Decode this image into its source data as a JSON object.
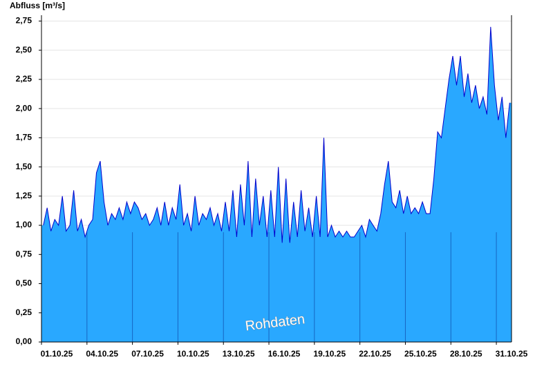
{
  "chart_data": {
    "type": "area",
    "title": "Abfluss [m³/s]",
    "annotation": "Rohdaten",
    "xlim": [
      0,
      31
    ],
    "xticks": [
      {
        "value": 0,
        "label": "01.10.25"
      },
      {
        "value": 3,
        "label": "04.10.25"
      },
      {
        "value": 6,
        "label": "07.10.25"
      },
      {
        "value": 9,
        "label": "10.10.25"
      },
      {
        "value": 12,
        "label": "13.10.25"
      },
      {
        "value": 15,
        "label": "16.10.25"
      },
      {
        "value": 18,
        "label": "19.10.25"
      },
      {
        "value": 21,
        "label": "22.10.25"
      },
      {
        "value": 24,
        "label": "25.10.25"
      },
      {
        "value": 27,
        "label": "28.10.25"
      },
      {
        "value": 30,
        "label": "31.10.25"
      }
    ],
    "ylim": [
      0,
      2.8
    ],
    "yticks": [
      {
        "value": 0,
        "label": "0,00"
      },
      {
        "value": 0.25,
        "label": "0,25"
      },
      {
        "value": 0.5,
        "label": "0,50"
      },
      {
        "value": 0.75,
        "label": "0,75"
      },
      {
        "value": 1,
        "label": "1,00"
      },
      {
        "value": 1.25,
        "label": "1,25"
      },
      {
        "value": 1.5,
        "label": "1,50"
      },
      {
        "value": 1.75,
        "label": "1,75"
      },
      {
        "value": 2,
        "label": "2,00"
      },
      {
        "value": 2.25,
        "label": "2,25"
      },
      {
        "value": 2.5,
        "label": "2,50"
      },
      {
        "value": 2.75,
        "label": "2,75"
      }
    ],
    "grid": true,
    "fill_color": "#29a8ff",
    "line_color": "#0000cc",
    "values": [
      1.0,
      1.15,
      0.95,
      1.05,
      1.0,
      1.25,
      0.95,
      1.0,
      1.3,
      0.95,
      1.05,
      0.9,
      1.0,
      1.05,
      1.45,
      1.55,
      1.2,
      1.0,
      1.1,
      1.05,
      1.15,
      1.05,
      1.2,
      1.1,
      1.2,
      1.15,
      1.05,
      1.1,
      1.0,
      1.05,
      1.15,
      1.0,
      1.2,
      1.0,
      1.15,
      1.05,
      1.35,
      1.0,
      1.1,
      0.95,
      1.25,
      1.0,
      1.1,
      1.05,
      1.15,
      1.0,
      1.1,
      0.95,
      1.2,
      0.95,
      1.3,
      0.9,
      1.35,
      1.0,
      1.55,
      0.9,
      1.4,
      1.0,
      1.25,
      0.9,
      1.3,
      0.9,
      1.5,
      0.85,
      1.4,
      0.85,
      1.2,
      0.9,
      1.3,
      0.95,
      1.15,
      0.9,
      1.25,
      0.9,
      1.75,
      0.9,
      1.0,
      0.9,
      0.95,
      0.9,
      0.95,
      0.9,
      0.9,
      0.95,
      1.0,
      0.9,
      1.05,
      1.0,
      0.95,
      1.1,
      1.35,
      1.55,
      1.2,
      1.15,
      1.3,
      1.1,
      1.25,
      1.1,
      1.15,
      1.1,
      1.2,
      1.1,
      1.1,
      1.4,
      1.8,
      1.75,
      2.0,
      2.25,
      2.45,
      2.2,
      2.45,
      2.1,
      2.3,
      2.05,
      2.2,
      2.0,
      2.1,
      1.95,
      2.7,
      2.2,
      1.9,
      2.1,
      1.75,
      2.05
    ]
  }
}
